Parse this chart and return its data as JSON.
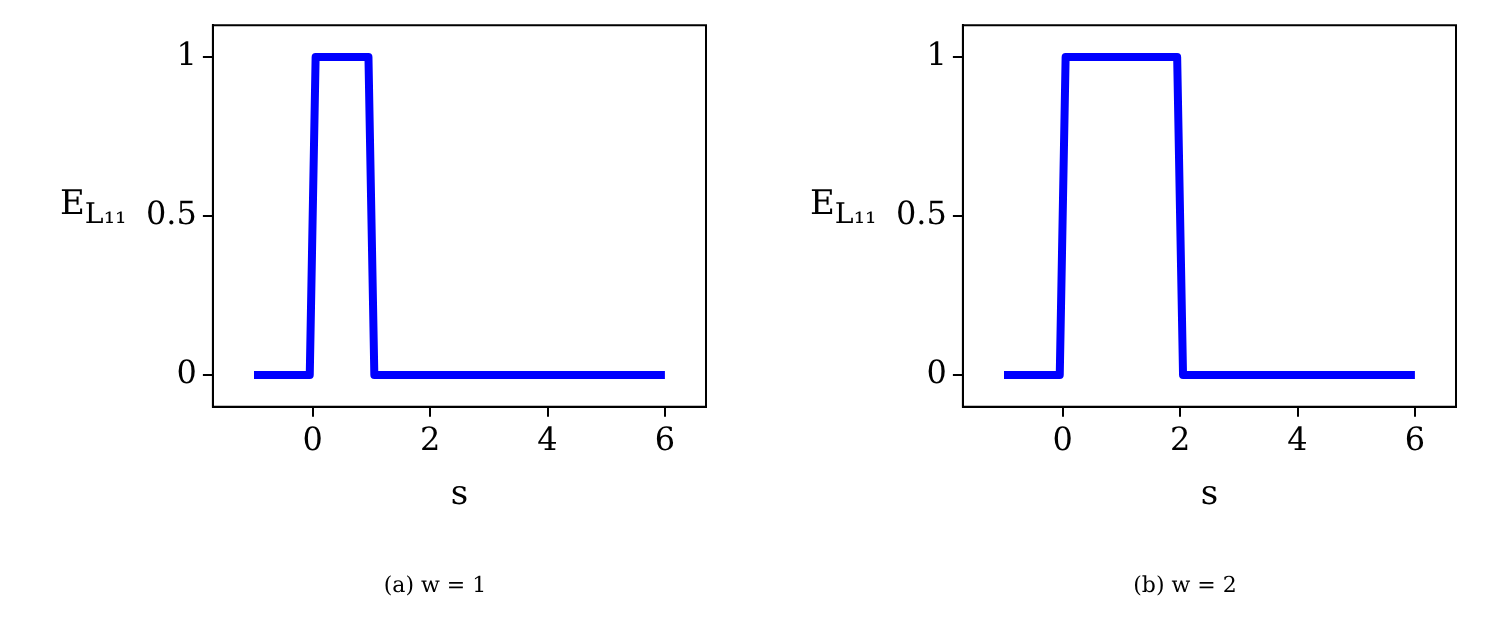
{
  "chart_data": [
    {
      "type": "line",
      "x": [
        -1,
        -0.05,
        0.05,
        0.95,
        1.05,
        6
      ],
      "series": [
        {
          "color": "#0000ff",
          "values": [
            0,
            0,
            1,
            1,
            0,
            0
          ]
        }
      ],
      "xlabel": "s",
      "ylabel": "E$_{L₁₁}$",
      "xlim": [
        -1.7,
        6.7
      ],
      "xticks": [
        0,
        2,
        4,
        6
      ],
      "ylim": [
        -0.1,
        1.1
      ],
      "yticks": [
        0,
        0.5,
        1
      ],
      "grid": false,
      "legend": false,
      "marker": "none",
      "line_style": "solid",
      "annotations": [
        "(a) w = 1"
      ]
    },
    {
      "type": "line",
      "x": [
        -1,
        -0.05,
        0.05,
        1.95,
        2.05,
        6
      ],
      "series": [
        {
          "color": "#0000ff",
          "values": [
            0,
            0,
            1,
            1,
            0,
            0
          ]
        }
      ],
      "xlabel": "s",
      "ylabel": "E$_{L₁₁}$",
      "xlim": [
        -1.7,
        6.7
      ],
      "xticks": [
        0,
        2,
        4,
        6
      ],
      "ylim": [
        -0.1,
        1.1
      ],
      "yticks": [
        0,
        0.5,
        1
      ],
      "grid": false,
      "legend": false,
      "marker": "none",
      "line_style": "solid",
      "annotations": [
        "(b) w = 2"
      ]
    }
  ]
}
